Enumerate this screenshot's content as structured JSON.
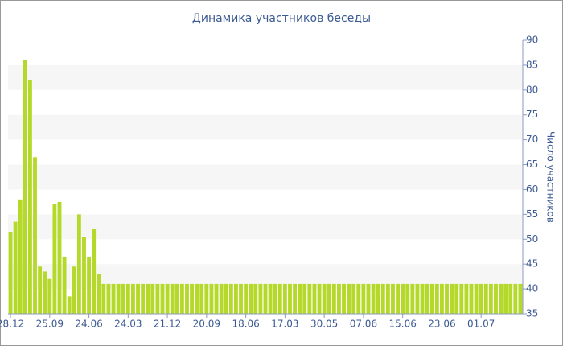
{
  "chart_data": {
    "type": "bar",
    "title": "Динамика участников беседы",
    "y_label": "Число участников",
    "categories": [
      "28.12",
      null,
      null,
      null,
      null,
      null,
      null,
      null,
      "25.09",
      null,
      null,
      null,
      null,
      null,
      null,
      null,
      "24.06",
      null,
      null,
      null,
      null,
      null,
      null,
      null,
      "24.03",
      null,
      null,
      null,
      null,
      null,
      null,
      null,
      "21.12",
      null,
      null,
      null,
      null,
      null,
      null,
      null,
      "20.09",
      null,
      null,
      null,
      null,
      null,
      null,
      null,
      "18.06",
      null,
      null,
      null,
      null,
      null,
      null,
      null,
      "17.03",
      null,
      null,
      null,
      null,
      null,
      null,
      null,
      "30.05",
      null,
      null,
      null,
      null,
      null,
      null,
      null,
      "07.06",
      null,
      null,
      null,
      null,
      null,
      null,
      null,
      "15.06",
      null,
      null,
      null,
      null,
      null,
      null,
      null,
      "23.06",
      null,
      null,
      null,
      null,
      null,
      null,
      null,
      "01.07",
      null,
      null,
      null,
      null,
      null,
      null,
      null,
      null
    ],
    "values": [
      51.5,
      53.5,
      58,
      86,
      82,
      66.5,
      44.5,
      43.5,
      42,
      57,
      57.5,
      46.5,
      38.5,
      44.5,
      55,
      50.5,
      46.5,
      52,
      43,
      41,
      41,
      41,
      41,
      41,
      41,
      41,
      41,
      41,
      41,
      41,
      41,
      41,
      41,
      41,
      41,
      41,
      41,
      41,
      41,
      41,
      41,
      41,
      41,
      41,
      41,
      41,
      41,
      41,
      41,
      41,
      41,
      41,
      41,
      41,
      41,
      41,
      41,
      41,
      41,
      41,
      41,
      41,
      41,
      41,
      41,
      41,
      41,
      41,
      41,
      41,
      41,
      41,
      41,
      41,
      41,
      41,
      41,
      41,
      41,
      41,
      41,
      41,
      41,
      41,
      41,
      41,
      41,
      41,
      41,
      41,
      41,
      41,
      41,
      41,
      41,
      41,
      41,
      41,
      41,
      41,
      41,
      41,
      41,
      41,
      41
    ],
    "color": "#b5d92a",
    "ylim": [
      35,
      90
    ],
    "yticks": [
      35,
      40,
      45,
      50,
      55,
      60,
      65,
      70,
      75,
      80,
      85,
      90
    ],
    "y_axis_side": "right",
    "grid": true
  }
}
